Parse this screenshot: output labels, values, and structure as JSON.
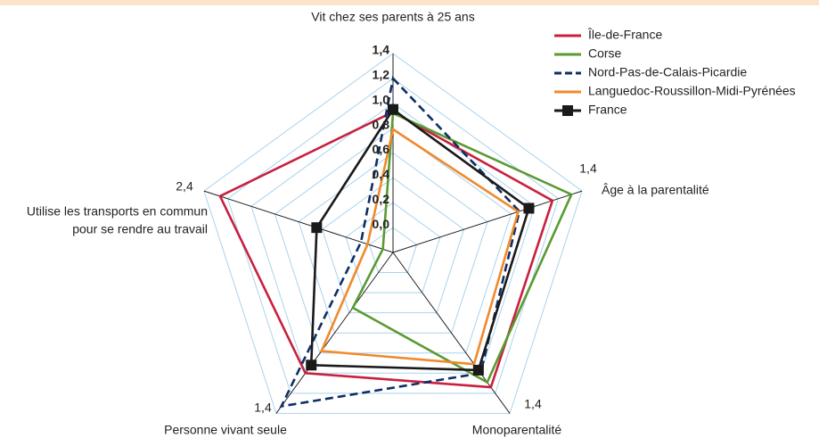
{
  "chart_data": {
    "type": "radar",
    "axes": [
      {
        "name": [
          "Vit chez ses parents à 25 ans"
        ],
        "lim": [
          -0.2,
          1.4
        ],
        "ticks": [
          {
            "value": 0,
            "label": "0,0"
          },
          {
            "value": 0.2,
            "label": "0,2"
          },
          {
            "value": 0.4,
            "label": "0,4"
          },
          {
            "value": 0.6,
            "label": "0,6"
          },
          {
            "value": 0.8,
            "label": "0,8"
          },
          {
            "value": 1,
            "label": "1,0"
          },
          {
            "value": 1.2,
            "label": "1,2"
          },
          {
            "value": 1.4,
            "label": "1,4"
          }
        ]
      },
      {
        "name": [
          "Âge à la parentalité"
        ],
        "lim": [
          -0.2,
          1.4
        ],
        "ticks": [
          {
            "value": 1.4,
            "label": "1,4"
          }
        ]
      },
      {
        "name": [
          "Monoparentalité"
        ],
        "lim": [
          -0.2,
          1.4
        ],
        "ticks": [
          {
            "value": 1.4,
            "label": "1,4"
          }
        ]
      },
      {
        "name": [
          "Personne vivant seule"
        ],
        "lim": [
          -0.2,
          1.4
        ],
        "ticks": [
          {
            "value": 1.4,
            "label": "1,4"
          }
        ]
      },
      {
        "name": [
          "Utilise les transports en commun",
          "pour se rendre au travail"
        ],
        "lim": [
          -0.2,
          2.4
        ],
        "ticks": [
          {
            "value": 2.4,
            "label": "2,4"
          }
        ]
      }
    ],
    "series": [
      {
        "name": "Île-de-France",
        "color": "#c8203f",
        "dash": false,
        "marker": false,
        "values": [
          0.93,
          1.15,
          1.14,
          1.0,
          2.18
        ]
      },
      {
        "name": "Corse",
        "color": "#5a9a32",
        "dash": false,
        "marker": false,
        "values": [
          0.92,
          1.31,
          1.09,
          0.35,
          -0.06
        ]
      },
      {
        "name": "Nord-Pas-de-Calais-Picardie",
        "color": "#0d2f66",
        "dash": true,
        "marker": false,
        "values": [
          1.2,
          0.87,
          1.0,
          1.33,
          0.24
        ]
      },
      {
        "name": "Languedoc-Roussillon-Midi-Pyrénées",
        "color": "#f08a2c",
        "dash": false,
        "marker": false,
        "values": [
          0.79,
          0.86,
          0.91,
          0.78,
          0.15
        ]
      },
      {
        "name": "France",
        "color": "#1a1a1a",
        "dash": false,
        "marker": true,
        "values": [
          0.95,
          0.95,
          0.97,
          0.92,
          0.85
        ]
      }
    ],
    "grid": true,
    "legend": "top-right"
  }
}
